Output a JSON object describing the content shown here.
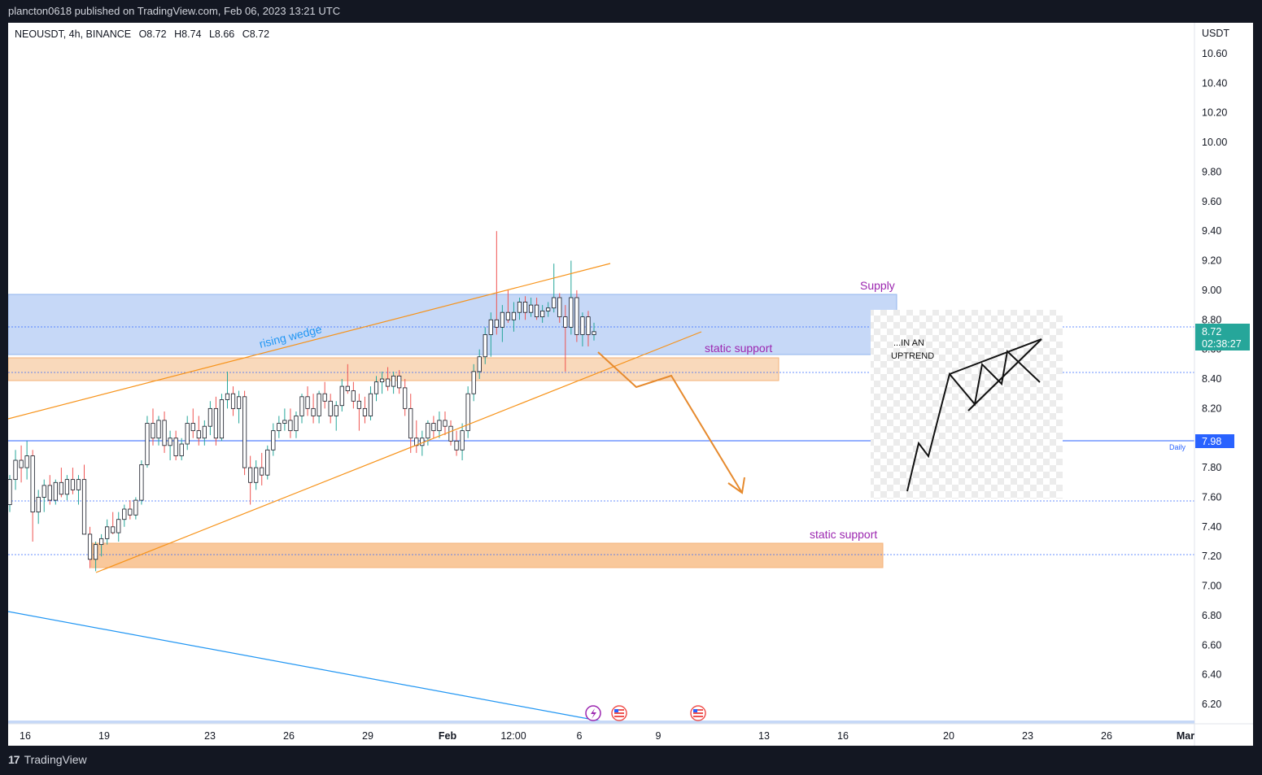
{
  "publisher": "plancton0618 published on TradingView.com, Feb 06, 2023 13:21 UTC",
  "symbol": {
    "pair": "NEOUSDT, 4h, BINANCE",
    "open": "O8.72",
    "high": "H8.74",
    "low": "L8.66",
    "close": "C8.72"
  },
  "footer": {
    "brand": "TradingView"
  },
  "colors": {
    "up": "#26a69a",
    "down": "#ef5350",
    "supply_zone": "#c6d8f7",
    "support_zone": "#f9c89b",
    "wedge": "#f7931a",
    "trendline": "#2196f3",
    "label": "#9c27b0",
    "price_badge": "#26a69a",
    "daily_badge": "#2962ff"
  },
  "chart_data": {
    "type": "candlestick",
    "title": "",
    "y_unit": "USDT",
    "ylim": [
      6.2,
      10.6
    ],
    "y_ticks": [
      "10.60",
      "10.40",
      "10.20",
      "10.00",
      "9.80",
      "9.60",
      "9.40",
      "9.20",
      "9.00",
      "8.80",
      "8.60",
      "8.40",
      "8.20",
      "8.00",
      "7.80",
      "7.60",
      "7.40",
      "7.20",
      "7.00",
      "6.80",
      "6.60",
      "6.40",
      "6.20"
    ],
    "x_ticks": [
      {
        "label": "16",
        "bold": false
      },
      {
        "label": "19",
        "bold": false
      },
      {
        "label": "23",
        "bold": false
      },
      {
        "label": "26",
        "bold": false
      },
      {
        "label": "29",
        "bold": false
      },
      {
        "label": "Feb",
        "bold": true
      },
      {
        "label": "12:00",
        "bold": false
      },
      {
        "label": "6",
        "bold": false
      },
      {
        "label": "9",
        "bold": false
      },
      {
        "label": "13",
        "bold": false
      },
      {
        "label": "16",
        "bold": false
      },
      {
        "label": "20",
        "bold": false
      },
      {
        "label": "23",
        "bold": false
      },
      {
        "label": "26",
        "bold": false
      },
      {
        "label": "Mar",
        "bold": true
      }
    ],
    "candles_ohlc": [
      [
        7.55,
        7.75,
        7.5,
        7.72
      ],
      [
        7.72,
        7.92,
        7.65,
        7.85
      ],
      [
        7.85,
        7.95,
        7.7,
        7.8
      ],
      [
        7.8,
        7.98,
        7.72,
        7.88
      ],
      [
        7.88,
        7.92,
        7.3,
        7.5
      ],
      [
        7.5,
        7.65,
        7.42,
        7.6
      ],
      [
        7.6,
        7.72,
        7.5,
        7.68
      ],
      [
        7.68,
        7.75,
        7.55,
        7.58
      ],
      [
        7.58,
        7.72,
        7.55,
        7.7
      ],
      [
        7.7,
        7.8,
        7.6,
        7.62
      ],
      [
        7.62,
        7.75,
        7.58,
        7.72
      ],
      [
        7.72,
        7.8,
        7.62,
        7.65
      ],
      [
        7.65,
        7.75,
        7.55,
        7.72
      ],
      [
        7.72,
        7.82,
        7.35,
        7.35
      ],
      [
        7.35,
        7.4,
        7.12,
        7.18
      ],
      [
        7.18,
        7.3,
        7.1,
        7.28
      ],
      [
        7.28,
        7.35,
        7.2,
        7.32
      ],
      [
        7.32,
        7.45,
        7.28,
        7.4
      ],
      [
        7.4,
        7.5,
        7.35,
        7.36
      ],
      [
        7.36,
        7.5,
        7.3,
        7.45
      ],
      [
        7.45,
        7.55,
        7.4,
        7.52
      ],
      [
        7.52,
        7.58,
        7.45,
        7.48
      ],
      [
        7.48,
        7.6,
        7.45,
        7.58
      ],
      [
        7.58,
        7.85,
        7.55,
        7.82
      ],
      [
        7.82,
        8.15,
        7.8,
        8.1
      ],
      [
        8.1,
        8.2,
        7.95,
        8.0
      ],
      [
        8.0,
        8.15,
        7.95,
        8.12
      ],
      [
        8.12,
        8.18,
        7.9,
        7.95
      ],
      [
        7.95,
        8.05,
        7.85,
        8.0
      ],
      [
        8.0,
        8.05,
        7.85,
        7.88
      ],
      [
        7.88,
        8.0,
        7.85,
        7.96
      ],
      [
        7.96,
        8.15,
        7.92,
        8.1
      ],
      [
        8.1,
        8.2,
        8.0,
        8.05
      ],
      [
        8.05,
        8.15,
        7.95,
        8.0
      ],
      [
        8.0,
        8.12,
        7.95,
        8.08
      ],
      [
        8.08,
        8.25,
        8.02,
        8.2
      ],
      [
        8.2,
        8.28,
        7.95,
        8.0
      ],
      [
        8.0,
        8.3,
        7.98,
        8.26
      ],
      [
        8.26,
        8.45,
        8.2,
        8.3
      ],
      [
        8.3,
        8.35,
        8.15,
        8.2
      ],
      [
        8.2,
        8.32,
        8.1,
        8.28
      ],
      [
        8.28,
        8.32,
        7.75,
        7.8
      ],
      [
        7.8,
        7.88,
        7.55,
        7.7
      ],
      [
        7.7,
        7.85,
        7.65,
        7.8
      ],
      [
        7.8,
        7.9,
        7.68,
        7.75
      ],
      [
        7.75,
        7.95,
        7.72,
        7.92
      ],
      [
        7.92,
        8.1,
        7.88,
        8.05
      ],
      [
        8.05,
        8.15,
        8.0,
        8.1
      ],
      [
        8.1,
        8.2,
        8.05,
        8.12
      ],
      [
        8.12,
        8.2,
        8.0,
        8.05
      ],
      [
        8.05,
        8.18,
        8.0,
        8.15
      ],
      [
        8.15,
        8.3,
        8.1,
        8.28
      ],
      [
        8.28,
        8.35,
        8.15,
        8.2
      ],
      [
        8.2,
        8.3,
        8.1,
        8.15
      ],
      [
        8.15,
        8.32,
        8.1,
        8.3
      ],
      [
        8.3,
        8.38,
        8.2,
        8.25
      ],
      [
        8.25,
        8.3,
        8.1,
        8.15
      ],
      [
        8.15,
        8.25,
        8.05,
        8.22
      ],
      [
        8.22,
        8.4,
        8.18,
        8.35
      ],
      [
        8.35,
        8.5,
        8.3,
        8.32
      ],
      [
        8.32,
        8.38,
        8.2,
        8.25
      ],
      [
        8.25,
        8.3,
        8.05,
        8.2
      ],
      [
        8.2,
        8.28,
        8.1,
        8.15
      ],
      [
        8.15,
        8.35,
        8.12,
        8.3
      ],
      [
        8.3,
        8.42,
        8.25,
        8.38
      ],
      [
        8.38,
        8.45,
        8.3,
        8.4
      ],
      [
        8.4,
        8.48,
        8.32,
        8.35
      ],
      [
        8.35,
        8.45,
        8.3,
        8.42
      ],
      [
        8.42,
        8.46,
        8.3,
        8.34
      ],
      [
        8.34,
        8.4,
        8.15,
        8.2
      ],
      [
        8.2,
        8.3,
        7.9,
        8.0
      ],
      [
        8.0,
        8.12,
        7.9,
        7.95
      ],
      [
        7.95,
        8.05,
        7.88,
        8.0
      ],
      [
        8.0,
        8.12,
        7.95,
        8.1
      ],
      [
        8.1,
        8.15,
        8.0,
        8.05
      ],
      [
        8.05,
        8.18,
        8.0,
        8.12
      ],
      [
        8.12,
        8.18,
        8.02,
        8.08
      ],
      [
        8.08,
        8.12,
        7.95,
        7.98
      ],
      [
        7.98,
        8.05,
        7.88,
        7.92
      ],
      [
        7.92,
        8.1,
        7.85,
        8.05
      ],
      [
        8.05,
        8.35,
        8.0,
        8.3
      ],
      [
        8.3,
        8.5,
        8.25,
        8.45
      ],
      [
        8.45,
        8.6,
        8.4,
        8.55
      ],
      [
        8.55,
        8.75,
        8.5,
        8.7
      ],
      [
        8.7,
        8.85,
        8.55,
        8.8
      ],
      [
        8.8,
        9.4,
        8.7,
        8.75
      ],
      [
        8.75,
        8.9,
        8.65,
        8.85
      ],
      [
        8.85,
        9.0,
        8.78,
        8.8
      ],
      [
        8.8,
        8.92,
        8.72,
        8.85
      ],
      [
        8.85,
        8.95,
        8.8,
        8.92
      ],
      [
        8.92,
        8.96,
        8.8,
        8.85
      ],
      [
        8.85,
        8.95,
        8.82,
        8.9
      ],
      [
        8.9,
        8.95,
        8.8,
        8.82
      ],
      [
        8.82,
        8.9,
        8.78,
        8.86
      ],
      [
        8.86,
        8.92,
        8.82,
        8.88
      ],
      [
        8.88,
        9.18,
        8.85,
        8.95
      ],
      [
        8.95,
        8.98,
        8.78,
        8.82
      ],
      [
        8.82,
        8.9,
        8.45,
        8.75
      ],
      [
        8.75,
        9.2,
        8.7,
        8.95
      ],
      [
        8.95,
        9.0,
        8.65,
        8.7
      ],
      [
        8.7,
        8.85,
        8.62,
        8.82
      ],
      [
        8.82,
        8.86,
        8.62,
        8.7
      ],
      [
        8.7,
        8.78,
        8.66,
        8.72
      ]
    ]
  },
  "annotations": {
    "rising_wedge": "rising wedge",
    "supply": "Supply",
    "static_support_1": "static support",
    "static_support_2": "static support",
    "inset_text_1": "...IN AN",
    "inset_text_2": "UPTREND",
    "daily": "Daily"
  },
  "price_labels": {
    "current_price": "8.72",
    "countdown": "02:38:27",
    "daily_level": "7.98"
  }
}
